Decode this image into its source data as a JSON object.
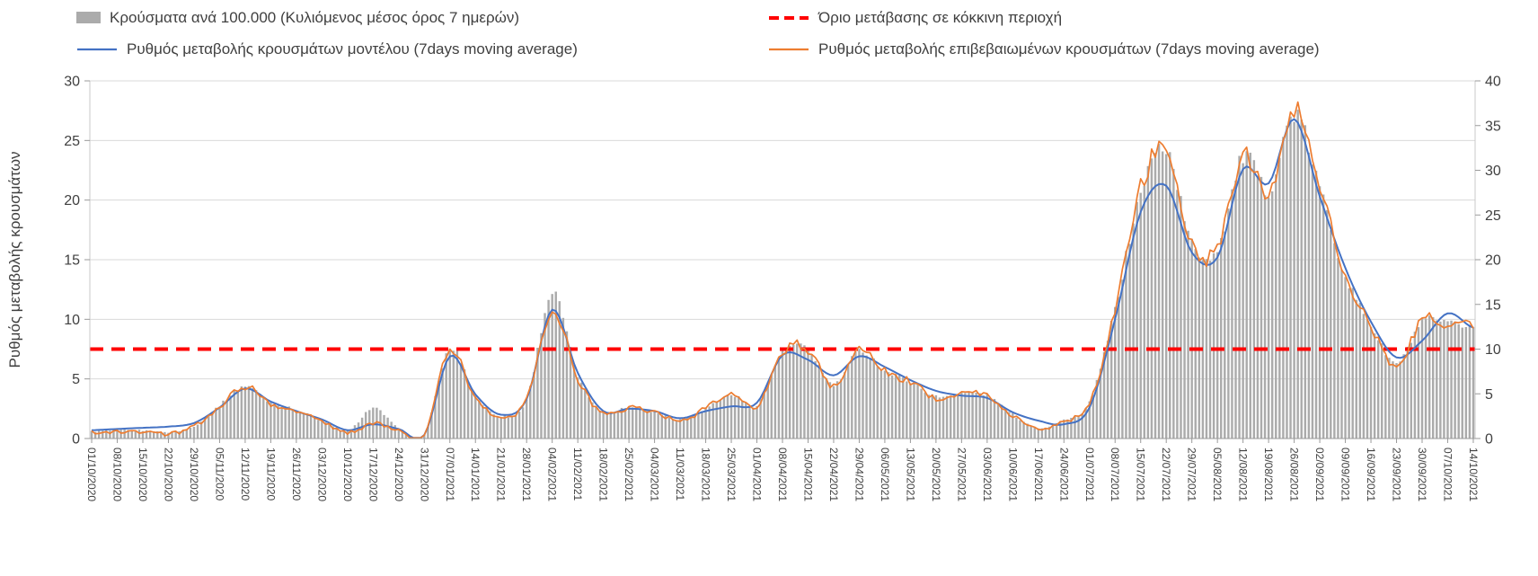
{
  "chart_data": {
    "type": "bar+line",
    "title": "",
    "legend_position": "top",
    "grid": "horizontal",
    "days_per_label": 7,
    "left_axis": {
      "label": "Ρυθμός μεταβολής κρουσμάτων",
      "min": 0,
      "max": 30,
      "step": 5
    },
    "right_axis": {
      "label": "",
      "min": 0,
      "max": 40,
      "step": 5
    },
    "threshold": {
      "name": "Όριο μετάβασης σε κόκκινη περιοχή",
      "value_left_axis": 7.5,
      "color": "#FF0000",
      "style": "dashed"
    },
    "x_labels": [
      "01/10/2020",
      "08/10/2020",
      "15/10/2020",
      "22/10/2020",
      "29/10/2020",
      "05/11/2020",
      "12/11/2020",
      "19/11/2020",
      "26/11/2020",
      "03/12/2020",
      "10/12/2020",
      "17/12/2020",
      "24/12/2020",
      "31/12/2020",
      "07/01/2021",
      "14/01/2021",
      "21/01/2021",
      "28/01/2021",
      "04/02/2021",
      "11/02/2021",
      "18/02/2021",
      "25/02/2021",
      "04/03/2021",
      "11/03/2021",
      "18/03/2021",
      "25/03/2021",
      "01/04/2021",
      "08/04/2021",
      "15/04/2021",
      "22/04/2021",
      "29/04/2021",
      "06/05/2021",
      "13/05/2021",
      "20/05/2021",
      "27/05/2021",
      "03/06/2021",
      "10/06/2021",
      "17/06/2021",
      "24/06/2021",
      "01/07/2021",
      "08/07/2021",
      "15/07/2021",
      "22/07/2021",
      "29/07/2021",
      "05/08/2021",
      "12/08/2021",
      "19/08/2021",
      "26/08/2021",
      "02/09/2021",
      "09/09/2021",
      "16/09/2021",
      "23/09/2021",
      "30/09/2021",
      "07/10/2021",
      "14/10/2021"
    ],
    "series": [
      {
        "name": "Κρούσματα ανά 100.000 (Κυλιόμενος μέσος όρος 7 ημερών)",
        "type": "bar",
        "axis": "right",
        "color": "#ABABAB",
        "weekly_values": [
          0.8,
          0.9,
          0.9,
          0.7,
          1.4,
          3.7,
          5.9,
          4.0,
          3.2,
          2.0,
          0.8,
          3.4,
          1.1,
          0.4,
          10.0,
          4.8,
          2.5,
          4.4,
          16.3,
          7.0,
          3.0,
          3.5,
          3.0,
          2.1,
          3.4,
          4.9,
          3.8,
          9.7,
          9.9,
          6.0,
          9.8,
          7.6,
          6.4,
          4.7,
          5.1,
          4.8,
          2.7,
          1.2,
          2.1,
          4.0,
          14.5,
          27.5,
          32.5,
          21.8,
          21.3,
          31.5,
          27.8,
          36.3,
          28.0,
          18.3,
          12.7,
          8.4,
          13.0,
          12.8,
          12.6
        ]
      },
      {
        "name": "Ρυθμός μεταβολής κρουσμάτων μοντέλου (7days moving average)",
        "type": "line",
        "axis": "left",
        "color": "#4472C4",
        "weekly_values": [
          0.7,
          0.8,
          0.9,
          1.0,
          1.3,
          2.6,
          4.2,
          3.1,
          2.3,
          1.6,
          0.7,
          1.2,
          0.8,
          0.3,
          6.9,
          3.7,
          2.0,
          3.3,
          10.8,
          5.5,
          2.3,
          2.5,
          2.3,
          1.7,
          2.3,
          2.7,
          3.0,
          7.0,
          6.6,
          5.3,
          6.9,
          6.0,
          4.9,
          4.0,
          3.6,
          3.4,
          2.2,
          1.5,
          1.2,
          2.6,
          10.0,
          19.0,
          21.2,
          15.6,
          15.2,
          22.6,
          21.4,
          26.8,
          20.3,
          14.3,
          9.8,
          6.8,
          8.2,
          10.5,
          9.3
        ]
      },
      {
        "name": "Ρυθμός μεταβολής επιβεβαιωμένων κρουσμάτων (7days moving average)",
        "type": "line",
        "axis": "left",
        "color": "#ED7D31",
        "weekly_values": [
          0.5,
          0.6,
          0.6,
          0.4,
          1.0,
          2.7,
          4.4,
          2.9,
          2.4,
          1.4,
          0.5,
          1.3,
          0.7,
          0.2,
          7.5,
          3.4,
          1.8,
          3.2,
          10.9,
          5.0,
          2.1,
          2.6,
          2.2,
          1.5,
          2.5,
          3.7,
          2.7,
          7.3,
          7.5,
          4.4,
          7.5,
          5.6,
          4.8,
          3.4,
          3.8,
          3.6,
          1.9,
          0.8,
          1.5,
          2.9,
          11.0,
          21.0,
          24.9,
          16.3,
          16.0,
          24.0,
          20.6,
          27.5,
          21.3,
          13.5,
          9.4,
          6.1,
          9.9,
          9.4,
          9.5
        ]
      }
    ]
  }
}
